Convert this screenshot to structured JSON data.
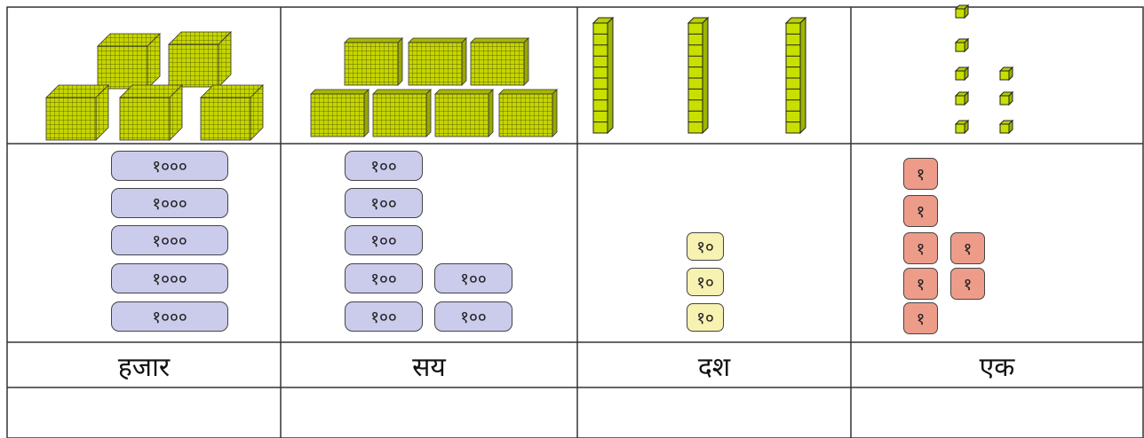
{
  "columns": [
    {
      "heading": "हजार",
      "cards": [
        "१०००",
        "१०००",
        "१०००",
        "१०००",
        "१०००"
      ]
    },
    {
      "heading": "सय",
      "cards": [
        "१००",
        "१००",
        "१००",
        "१००",
        "१००",
        "१००",
        "१००"
      ]
    },
    {
      "heading": "दश",
      "cards": [
        "१०",
        "१०",
        "१०"
      ]
    },
    {
      "heading": "एक",
      "cards": [
        "१",
        "१",
        "१",
        "१",
        "१",
        "१",
        "१"
      ]
    }
  ]
}
